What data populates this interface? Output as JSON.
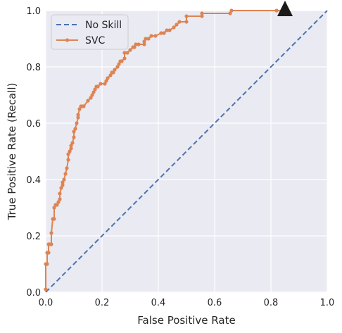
{
  "chart_data": {
    "type": "line",
    "xlabel": "False Positive Rate",
    "ylabel": "True Positive Rate (Recall)",
    "xlim": [
      0,
      1
    ],
    "ylim": [
      0,
      1
    ],
    "xticks": [
      "0.0",
      "0.2",
      "0.4",
      "0.6",
      "0.8",
      "1.0"
    ],
    "yticks": [
      "0.0",
      "0.2",
      "0.4",
      "0.6",
      "0.8",
      "1.0"
    ],
    "grid": true,
    "legend_position": "top-left",
    "colors": {
      "background": "#eaeaf2",
      "grid": "#ffffff",
      "no_skill": "#4c72b0",
      "svc": "#dd8452",
      "marker": "#1a1a1a"
    },
    "series": [
      {
        "name": "No Skill",
        "style": "dashed",
        "x": [
          0,
          1
        ],
        "y": [
          0,
          1
        ]
      },
      {
        "name": "SVC",
        "style": "line-with-points",
        "x": [
          0.0,
          0.0,
          0.005,
          0.005,
          0.01,
          0.01,
          0.015,
          0.02,
          0.02,
          0.025,
          0.03,
          0.03,
          0.035,
          0.04,
          0.045,
          0.05,
          0.05,
          0.055,
          0.06,
          0.06,
          0.065,
          0.07,
          0.075,
          0.08,
          0.08,
          0.085,
          0.09,
          0.09,
          0.095,
          0.1,
          0.1,
          0.105,
          0.11,
          0.115,
          0.115,
          0.12,
          0.125,
          0.13,
          0.135,
          0.15,
          0.16,
          0.165,
          0.17,
          0.175,
          0.18,
          0.185,
          0.195,
          0.21,
          0.215,
          0.22,
          0.23,
          0.235,
          0.24,
          0.245,
          0.255,
          0.26,
          0.265,
          0.27,
          0.28,
          0.28,
          0.29,
          0.3,
          0.31,
          0.315,
          0.32,
          0.33,
          0.35,
          0.35,
          0.355,
          0.365,
          0.375,
          0.39,
          0.41,
          0.42,
          0.43,
          0.44,
          0.455,
          0.465,
          0.475,
          0.5,
          0.5,
          0.555,
          0.555,
          0.655,
          0.66,
          0.82,
          0.85
        ],
        "y": [
          0.01,
          0.1,
          0.1,
          0.14,
          0.14,
          0.17,
          0.17,
          0.17,
          0.21,
          0.26,
          0.26,
          0.3,
          0.31,
          0.31,
          0.32,
          0.33,
          0.35,
          0.37,
          0.38,
          0.39,
          0.4,
          0.42,
          0.44,
          0.47,
          0.49,
          0.5,
          0.51,
          0.52,
          0.53,
          0.55,
          0.57,
          0.58,
          0.6,
          0.62,
          0.63,
          0.65,
          0.66,
          0.66,
          0.66,
          0.68,
          0.69,
          0.7,
          0.71,
          0.72,
          0.73,
          0.73,
          0.74,
          0.74,
          0.75,
          0.76,
          0.77,
          0.78,
          0.78,
          0.79,
          0.8,
          0.81,
          0.82,
          0.82,
          0.83,
          0.85,
          0.85,
          0.86,
          0.87,
          0.87,
          0.88,
          0.88,
          0.88,
          0.89,
          0.9,
          0.9,
          0.91,
          0.91,
          0.92,
          0.92,
          0.93,
          0.93,
          0.94,
          0.95,
          0.96,
          0.96,
          0.98,
          0.98,
          0.99,
          0.99,
          1.0,
          1.0,
          1.0
        ]
      }
    ],
    "annotations": [
      {
        "type": "triangle-marker",
        "x": 0.85,
        "y": 1.0
      }
    ]
  }
}
